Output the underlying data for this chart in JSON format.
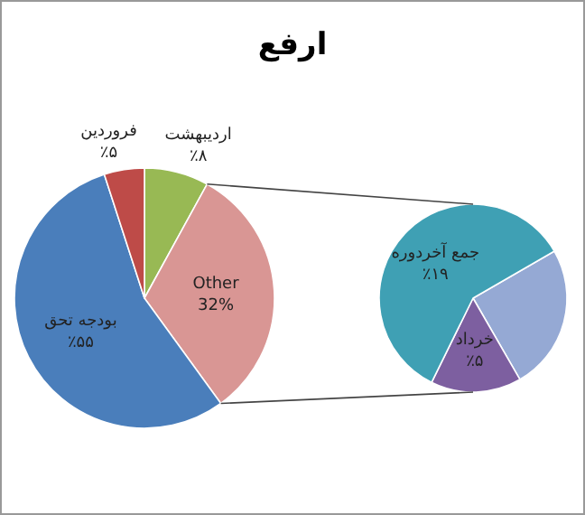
{
  "chart_data": [
    {
      "type": "pie",
      "title": "ارفع",
      "categories": [
        "اردیبهشت",
        "Other",
        "بودجه تحق",
        "فروردین"
      ],
      "values": [
        8,
        32,
        55,
        5
      ],
      "colors": [
        "#98b954",
        "#d99694",
        "#4a7ebb",
        "#be4b48"
      ],
      "value_labels": [
        "٪۸",
        "32%",
        "٪۵۵",
        "٪۵"
      ]
    },
    {
      "type": "pie",
      "categories": [
        null,
        "خرداد",
        "جمع آخردوره"
      ],
      "values": [
        8,
        5,
        19
      ],
      "colors": [
        "#95a9d4",
        "#7d5fa0",
        "#3fa0b4"
      ],
      "value_labels": [
        null,
        "٪۵",
        "٪۱۹"
      ]
    }
  ]
}
